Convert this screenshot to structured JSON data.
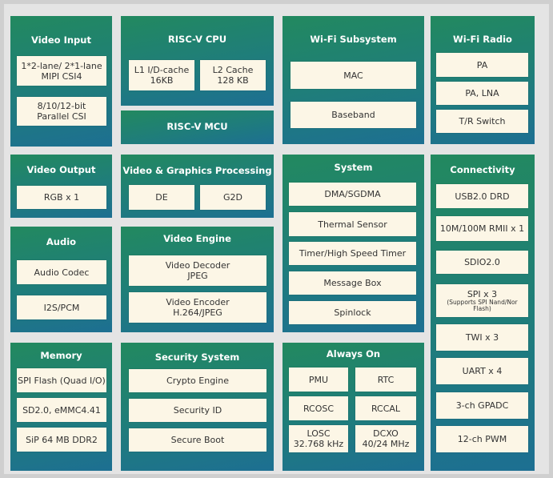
{
  "blocks": [
    {
      "title": "Video Input",
      "items": [
        {
          "lines": [
            "1*2-lane/ 2*1-lane",
            "MIPI CSI4"
          ]
        },
        {
          "lines": [
            "8/10/12-bit",
            "Parallel CSI"
          ]
        }
      ]
    },
    {
      "title": "Video Output",
      "items": [
        {
          "lines": [
            "RGB x 1"
          ]
        }
      ]
    },
    {
      "title": "Audio",
      "items": [
        {
          "lines": [
            "Audio Codec"
          ]
        },
        {
          "lines": [
            "I2S/PCM"
          ]
        }
      ]
    },
    {
      "title": "Memory",
      "items": [
        {
          "lines": [
            "SPI Flash (Quad I/O)"
          ]
        },
        {
          "lines": [
            "SD2.0, eMMC4.41"
          ]
        },
        {
          "lines": [
            "SiP 64 MB DDR2"
          ]
        }
      ]
    },
    {
      "title": "RISC-V CPU",
      "items": [
        {
          "lines": [
            "L1 I/D-cache",
            "16KB"
          ]
        },
        {
          "lines": [
            "L2 Cache",
            "128 KB"
          ]
        }
      ]
    },
    {
      "title": "RISC-V MCU",
      "items": []
    },
    {
      "title": "Video & Graphics Processing",
      "items": [
        {
          "lines": [
            "DE"
          ]
        },
        {
          "lines": [
            "G2D"
          ]
        }
      ]
    },
    {
      "title": "Video Engine",
      "items": [
        {
          "lines": [
            "Video Decoder",
            "JPEG"
          ]
        },
        {
          "lines": [
            "Video Encoder",
            "H.264/JPEG"
          ]
        }
      ]
    },
    {
      "title": "Security System",
      "items": [
        {
          "lines": [
            "Crypto Engine"
          ]
        },
        {
          "lines": [
            "Security ID"
          ]
        },
        {
          "lines": [
            "Secure Boot"
          ]
        }
      ]
    },
    {
      "title": "Wi-Fi Subsystem",
      "items": [
        {
          "lines": [
            "MAC"
          ]
        },
        {
          "lines": [
            "Baseband"
          ]
        }
      ]
    },
    {
      "title": "System",
      "items": [
        {
          "lines": [
            "DMA/SGDMA"
          ]
        },
        {
          "lines": [
            "Thermal Sensor"
          ]
        },
        {
          "lines": [
            "Timer/High Speed Timer"
          ]
        },
        {
          "lines": [
            "Message Box"
          ]
        },
        {
          "lines": [
            "Spinlock"
          ]
        }
      ]
    },
    {
      "title": "Always On",
      "items": [
        {
          "lines": [
            "PMU"
          ]
        },
        {
          "lines": [
            "RTC"
          ]
        },
        {
          "lines": [
            "RCOSC"
          ]
        },
        {
          "lines": [
            "RCCAL"
          ]
        },
        {
          "lines": [
            "LOSC",
            "32.768 kHz"
          ]
        },
        {
          "lines": [
            "DCXO",
            "40/24 MHz"
          ]
        }
      ]
    },
    {
      "title": "Wi-Fi Radio",
      "items": [
        {
          "lines": [
            "PA"
          ]
        },
        {
          "lines": [
            "PA, LNA"
          ]
        },
        {
          "lines": [
            "T/R Switch"
          ]
        }
      ]
    },
    {
      "title": "Connectivity",
      "items": [
        {
          "lines": [
            "USB2.0 DRD"
          ]
        },
        {
          "lines": [
            "10M/100M RMII x 1"
          ]
        },
        {
          "lines": [
            "SDIO2.0"
          ]
        },
        {
          "lines": [
            "SPI x 3"
          ],
          "note": [
            "(Supports SPI Nand/Nor",
            "Flash)"
          ]
        },
        {
          "lines": [
            "TWI x 3"
          ]
        },
        {
          "lines": [
            "UART x 4"
          ]
        },
        {
          "lines": [
            "3-ch GPADC"
          ]
        },
        {
          "lines": [
            "12-ch PWM"
          ]
        }
      ]
    }
  ]
}
